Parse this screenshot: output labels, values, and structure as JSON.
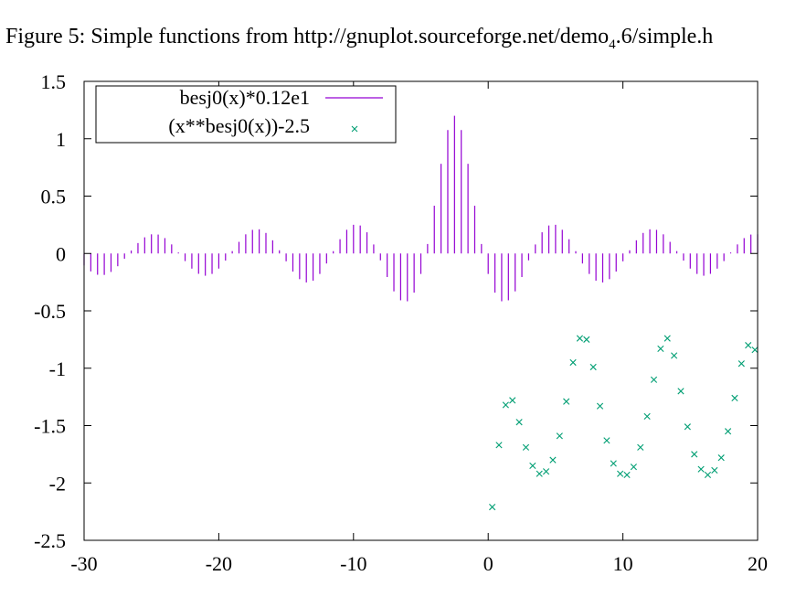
{
  "chart_data": {
    "type": "line",
    "title_main": "Figure 5: Simple functions from http://gnuplot.sourceforge.net/demo",
    "title_sub": "4",
    "title_tail": ".6/simple.h",
    "xlim": [
      -30,
      20
    ],
    "ylim": [
      -2.5,
      1.5
    ],
    "x_ticks": [
      "-30",
      "-20",
      "-10",
      "0",
      "10",
      "20"
    ],
    "y_ticks": [
      "1.5",
      "1",
      "0.5",
      "0",
      "-0.5",
      "-1",
      "-1.5",
      "-2",
      "-2.5"
    ],
    "grid": false,
    "legend_placement": "top-left",
    "series": [
      {
        "name": "besj0(x)*0.12e1",
        "style": "impulses",
        "color": "#9400d3",
        "x_start": -30,
        "x_step": 0.5,
        "count": 101,
        "values": [
          -0.1036,
          -0.1562,
          -0.1854,
          -0.1868,
          -0.1607,
          -0.1111,
          -0.0457,
          0.0254,
          0.0908,
          0.1407,
          0.1669,
          0.1648,
          0.134,
          0.0791,
          0.0087,
          -0.0664,
          -0.132,
          -0.1773,
          -0.1939,
          -0.1781,
          -0.1317,
          -0.0617,
          0.0206,
          0.1013,
          0.1669,
          0.2058,
          0.2106,
          0.179,
          0.1148,
          0.0277,
          -0.0682,
          -0.1577,
          -0.2238,
          -0.2525,
          -0.2369,
          -0.1784,
          -0.0873,
          0.0201,
          0.1243,
          0.2065,
          0.2501,
          0.2438,
          0.1847,
          0.0785,
          -0.0597,
          -0.2051,
          -0.3302,
          -0.4081,
          -0.4166,
          -0.3412,
          -0.1784,
          0.0826,
          0.4162,
          0.7814,
          1.0752,
          1.2,
          1.0752,
          0.7814,
          0.4162,
          0.0826,
          -0.1784,
          -0.3412,
          -0.4166,
          -0.4081,
          -0.3302,
          -0.2051,
          -0.0597,
          0.0785,
          0.1847,
          0.2438,
          0.2501,
          0.2065,
          0.1243,
          0.0201,
          -0.0873,
          -0.1784,
          -0.2369,
          -0.2525,
          -0.2238,
          -0.1577,
          -0.0682,
          0.0277,
          0.1148,
          0.179,
          0.2106,
          0.2058,
          0.1669,
          0.1013,
          0.0206,
          -0.0617,
          -0.1317,
          -0.1781,
          -0.1939,
          -0.1773,
          -0.132,
          -0.0664,
          0.0087,
          0.0791,
          0.134,
          0.1648,
          0.1669
        ]
      },
      {
        "name": "(x**besj0(x))-2.5",
        "style": "points",
        "marker": "x",
        "color": "#009e73",
        "points": [
          [
            0.3,
            -2.21
          ],
          [
            0.8,
            -1.67
          ],
          [
            1.3,
            -1.32
          ],
          [
            1.8,
            -1.28
          ],
          [
            2.3,
            -1.47
          ],
          [
            2.8,
            -1.69
          ],
          [
            3.3,
            -1.85
          ],
          [
            3.8,
            -1.92
          ],
          [
            4.3,
            -1.9
          ],
          [
            4.8,
            -1.8
          ],
          [
            5.3,
            -1.59
          ],
          [
            5.8,
            -1.29
          ],
          [
            6.3,
            -0.95
          ],
          [
            6.8,
            -0.74
          ],
          [
            7.3,
            -0.75
          ],
          [
            7.8,
            -0.99
          ],
          [
            8.3,
            -1.33
          ],
          [
            8.8,
            -1.63
          ],
          [
            9.3,
            -1.83
          ],
          [
            9.8,
            -1.92
          ],
          [
            10.3,
            -1.93
          ],
          [
            10.8,
            -1.86
          ],
          [
            11.3,
            -1.69
          ],
          [
            11.8,
            -1.42
          ],
          [
            12.3,
            -1.1
          ],
          [
            12.8,
            -0.83
          ],
          [
            13.3,
            -0.74
          ],
          [
            13.8,
            -0.89
          ],
          [
            14.3,
            -1.2
          ],
          [
            14.8,
            -1.51
          ],
          [
            15.3,
            -1.75
          ],
          [
            15.8,
            -1.88
          ],
          [
            16.3,
            -1.93
          ],
          [
            16.8,
            -1.89
          ],
          [
            17.3,
            -1.78
          ],
          [
            17.8,
            -1.55
          ],
          [
            18.3,
            -1.26
          ],
          [
            18.8,
            -0.96
          ],
          [
            19.3,
            -0.8
          ],
          [
            19.8,
            -0.84
          ]
        ]
      }
    ]
  }
}
